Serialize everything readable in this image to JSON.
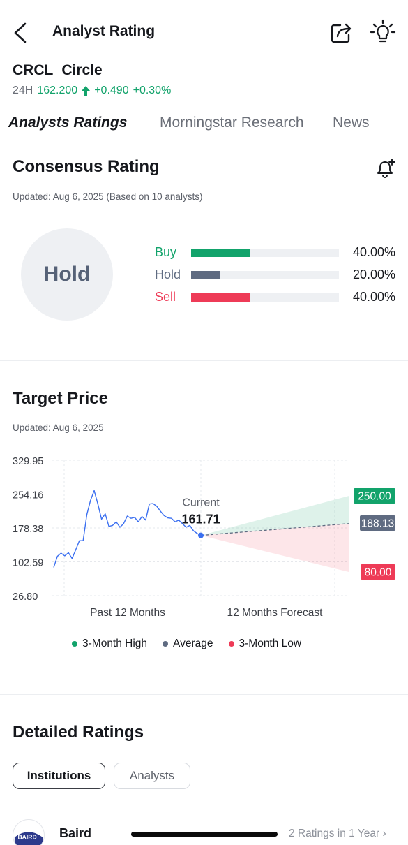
{
  "header": {
    "title": "Analyst Rating",
    "back_icon": "chevron-left-icon",
    "share_icon": "share-icon",
    "tip_icon": "lightbulb-icon"
  },
  "stock": {
    "symbol": "CRCL",
    "name": "Circle",
    "period": "24H",
    "price": "162.200",
    "change": "+0.490",
    "change_pct": "+0.30%"
  },
  "tabs": [
    "Analysts Ratings",
    "Morningstar Research",
    "News"
  ],
  "consensus": {
    "title": "Consensus Rating",
    "updated": "Updated: Aug 6, 2025 (Based on  10 analysts)",
    "rating": "Hold",
    "bell_icon": "bell-plus-icon",
    "rows": [
      {
        "label": "Buy",
        "pct": "40.00%",
        "value": 0.4,
        "color": "#12a36b"
      },
      {
        "label": "Hold",
        "pct": "20.00%",
        "value": 0.2,
        "color": "#5f6b81"
      },
      {
        "label": "Sell",
        "pct": "40.00%",
        "value": 0.4,
        "color": "#ee3b57"
      }
    ]
  },
  "target": {
    "title": "Target Price",
    "updated": "Updated: Aug 6, 2025"
  },
  "chart_data": {
    "type": "line",
    "y_ticks": [
      "329.95",
      "254.16",
      "178.38",
      "102.59",
      "26.80"
    ],
    "ylim": [
      26.8,
      329.95
    ],
    "x_labels": [
      "Past 12 Months",
      "12 Months Forecast"
    ],
    "current_label": "Current",
    "current_value": "161.71",
    "history": [
      90,
      115,
      122,
      116,
      123,
      110,
      130,
      150,
      150,
      208,
      240,
      262,
      232,
      198,
      210,
      182,
      184,
      192,
      180,
      188,
      205,
      200,
      202,
      192,
      204,
      196,
      232,
      233,
      227,
      216,
      206,
      201,
      200,
      192,
      196,
      188,
      180,
      184,
      172,
      166,
      161.71
    ],
    "forecast": {
      "high": 250.0,
      "average": 188.13,
      "low": 80.0
    },
    "forecast_labels": {
      "high": "250.00",
      "average": "188.13",
      "low": "80.00"
    },
    "legend": [
      "3-Month High",
      "Average",
      "3-Month Low"
    ],
    "colors": {
      "high": "#12a36b",
      "average": "#5f6b81",
      "low": "#ee3b57",
      "line": "#3b6ff0"
    }
  },
  "detailed": {
    "title": "Detailed Ratings",
    "filters": [
      "Institutions",
      "Analysts"
    ],
    "institutions": [
      {
        "name": "Baird",
        "logo_text": "BAIRD",
        "ratings": "2 Ratings in 1 Year"
      }
    ]
  }
}
